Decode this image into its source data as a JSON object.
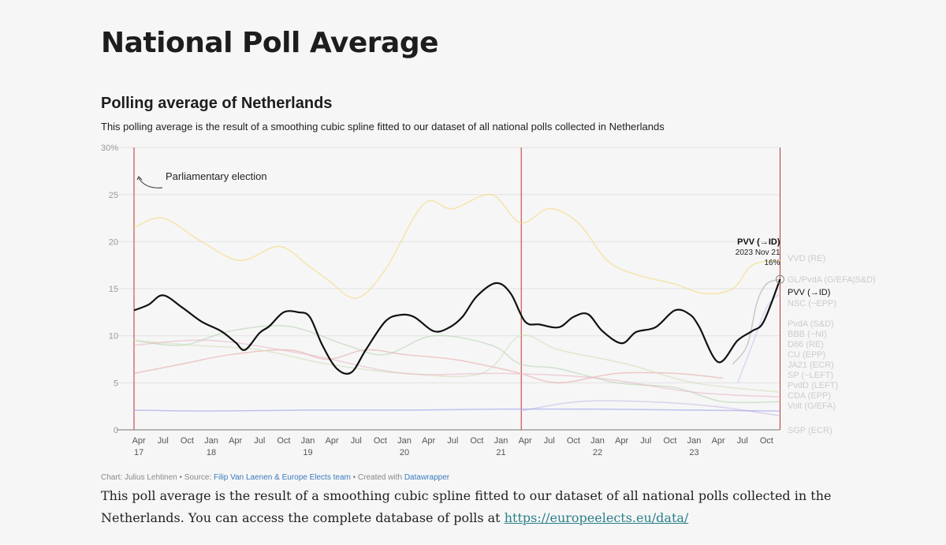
{
  "page_title": "National Poll Average",
  "chart_data": {
    "type": "line",
    "title": "Polling average of Netherlands",
    "subtitle": "This polling average is the result of a smoothing cubic spline fitted to our dataset of all national polls collected in Netherlands",
    "ylim": [
      0,
      30
    ],
    "yticks": [
      {
        "v": 0,
        "label": "0"
      },
      {
        "v": 5,
        "label": "5"
      },
      {
        "v": 10,
        "label": "10"
      },
      {
        "v": 15,
        "label": "15"
      },
      {
        "v": 20,
        "label": "20"
      },
      {
        "v": 25,
        "label": "25"
      },
      {
        "v": 30,
        "label": "30%"
      }
    ],
    "xticks": [
      {
        "t": 2017.25,
        "m": "Apr",
        "y": "17"
      },
      {
        "t": 2017.5,
        "m": "Jul",
        "y": ""
      },
      {
        "t": 2017.75,
        "m": "Oct",
        "y": ""
      },
      {
        "t": 2018.0,
        "m": "Jan",
        "y": "18"
      },
      {
        "t": 2018.25,
        "m": "Apr",
        "y": ""
      },
      {
        "t": 2018.5,
        "m": "Jul",
        "y": ""
      },
      {
        "t": 2018.75,
        "m": "Oct",
        "y": ""
      },
      {
        "t": 2019.0,
        "m": "Jan",
        "y": "19"
      },
      {
        "t": 2019.25,
        "m": "Apr",
        "y": ""
      },
      {
        "t": 2019.5,
        "m": "Jul",
        "y": ""
      },
      {
        "t": 2019.75,
        "m": "Oct",
        "y": ""
      },
      {
        "t": 2020.0,
        "m": "Jan",
        "y": "20"
      },
      {
        "t": 2020.25,
        "m": "Apr",
        "y": ""
      },
      {
        "t": 2020.5,
        "m": "Jul",
        "y": ""
      },
      {
        "t": 2020.75,
        "m": "Oct",
        "y": ""
      },
      {
        "t": 2021.0,
        "m": "Jan",
        "y": "21"
      },
      {
        "t": 2021.25,
        "m": "Apr",
        "y": ""
      },
      {
        "t": 2021.5,
        "m": "Jul",
        "y": ""
      },
      {
        "t": 2021.75,
        "m": "Oct",
        "y": ""
      },
      {
        "t": 2022.0,
        "m": "Jan",
        "y": "22"
      },
      {
        "t": 2022.25,
        "m": "Apr",
        "y": ""
      },
      {
        "t": 2022.5,
        "m": "Jul",
        "y": ""
      },
      {
        "t": 2022.75,
        "m": "Oct",
        "y": ""
      },
      {
        "t": 2023.0,
        "m": "Jan",
        "y": "23"
      },
      {
        "t": 2023.25,
        "m": "Apr",
        "y": ""
      },
      {
        "t": 2023.5,
        "m": "Jul",
        "y": ""
      },
      {
        "t": 2023.75,
        "m": "Oct",
        "y": ""
      }
    ],
    "elections": [
      2017.2,
      2021.21,
      2023.89
    ],
    "annotation": "Parliamentary election",
    "tooltip": {
      "party": "PVV (→ID)",
      "date": "2023 Nov 21",
      "value": "16%"
    },
    "series": [
      {
        "name": "VVD (RE)",
        "color": "#f5d97a",
        "highlight": false,
        "t": [
          2017.2,
          2017.5,
          2017.9,
          2018.3,
          2018.7,
          2019.0,
          2019.2,
          2019.5,
          2019.8,
          2020.2,
          2020.5,
          2020.9,
          2021.2,
          2021.5,
          2021.8,
          2022.1,
          2022.4,
          2022.8,
          2023.1,
          2023.4,
          2023.6,
          2023.89
        ],
        "v": [
          21.5,
          22.5,
          20,
          18,
          19.5,
          17.5,
          16,
          14,
          17,
          24,
          23.5,
          25,
          22,
          23.5,
          22,
          18,
          16.5,
          15.5,
          14.5,
          15,
          17.5,
          18
        ]
      },
      {
        "name": "GL/PvdA (G/EFA|S&D)",
        "color": "#aaaaaa",
        "highlight": false,
        "t": [
          2023.4,
          2023.55,
          2023.65,
          2023.75,
          2023.89
        ],
        "v": [
          7,
          9,
          13.5,
          15.5,
          16
        ]
      },
      {
        "name": "NSC (~EPP)",
        "color": "#b9c9ee",
        "highlight": false,
        "t": [
          2023.45,
          2023.6,
          2023.75,
          2023.89
        ],
        "v": [
          5,
          9,
          13,
          14.5
        ]
      },
      {
        "name": "PvdA (S&D)",
        "color": "#e8a9a9",
        "highlight": false,
        "t": [
          2017.2,
          2017.7,
          2018.2,
          2018.8,
          2019.2,
          2019.6,
          2020.0,
          2020.5,
          2021.0,
          2021.2,
          2021.6,
          2022.2,
          2022.8,
          2023.3
        ],
        "v": [
          6,
          7,
          8,
          8.5,
          7.5,
          8.5,
          8,
          7.5,
          6.5,
          6,
          5,
          6,
          6,
          5.5
        ]
      },
      {
        "name": "CDA (EPP)",
        "color": "#b8d3b3",
        "highlight": false,
        "t": [
          2017.2,
          2017.7,
          2018.2,
          2018.8,
          2019.4,
          2019.8,
          2020.3,
          2020.9,
          2021.2,
          2021.6,
          2022.2,
          2022.8,
          2023.3,
          2023.89
        ],
        "v": [
          9.5,
          9,
          10.5,
          11,
          9,
          8,
          10,
          9,
          7,
          6.5,
          5,
          4.5,
          3,
          3
        ]
      },
      {
        "name": "D66 (RE)",
        "color": "#cfe0b5",
        "highlight": false,
        "t": [
          2017.2,
          2017.8,
          2018.5,
          2019.2,
          2020.0,
          2020.8,
          2021.2,
          2021.6,
          2022.3,
          2023.0,
          2023.89
        ],
        "v": [
          9.5,
          9,
          8.5,
          7,
          6,
          6,
          10,
          8.5,
          7,
          5,
          4
        ]
      },
      {
        "name": "SP (~LEFT)",
        "color": "#e8b5c4",
        "highlight": false,
        "t": [
          2017.2,
          2018.0,
          2019.0,
          2020.0,
          2021.0,
          2022.0,
          2023.0,
          2023.89
        ],
        "v": [
          9,
          9.5,
          8,
          6,
          6,
          5.5,
          4,
          3.5
        ]
      },
      {
        "name": "Volt (G/EFA)",
        "color": "#c9b9e6",
        "highlight": false,
        "t": [
          2021.2,
          2021.8,
          2022.5,
          2023.2,
          2023.89
        ],
        "v": [
          2,
          3,
          3,
          2.5,
          1.5
        ]
      },
      {
        "name": "SGP (ECR)",
        "color": "#9aa0e8",
        "highlight": false,
        "t": [
          2017.2,
          2018.0,
          2019.0,
          2020.0,
          2021.0,
          2022.0,
          2023.0,
          2023.89
        ],
        "v": [
          2.1,
          2,
          2.1,
          2.1,
          2.2,
          2.2,
          2.1,
          2
        ]
      },
      {
        "name": "PVV (→ID)",
        "color": "#111111",
        "highlight": true,
        "t": [
          2017.2,
          2017.35,
          2017.5,
          2017.7,
          2017.9,
          2018.1,
          2018.25,
          2018.35,
          2018.5,
          2018.6,
          2018.75,
          2018.9,
          2019.02,
          2019.15,
          2019.3,
          2019.45,
          2019.6,
          2019.8,
          2019.95,
          2020.1,
          2020.3,
          2020.45,
          2020.6,
          2020.75,
          2020.95,
          2021.1,
          2021.25,
          2021.4,
          2021.6,
          2021.75,
          2021.9,
          2022.05,
          2022.25,
          2022.4,
          2022.6,
          2022.8,
          2022.95,
          2023.05,
          2023.25,
          2023.45,
          2023.6,
          2023.72,
          2023.89
        ],
        "v": [
          12.7,
          13.3,
          14.3,
          13,
          11.5,
          10.5,
          9.3,
          8.5,
          10.3,
          11,
          12.5,
          12.5,
          12,
          9,
          6.5,
          6.1,
          8.5,
          11.5,
          12.2,
          12,
          10.5,
          10.8,
          12,
          14.2,
          15.6,
          14.5,
          11.5,
          11.2,
          10.9,
          12,
          12.3,
          10.5,
          9.2,
          10.4,
          10.9,
          12.7,
          12.3,
          11,
          7.2,
          9.5,
          10.5,
          11.5,
          16
        ]
      }
    ],
    "end_labels": [
      "VVD (RE)",
      "GL/PvdA (G/EFA|S&D)",
      "PVV (→ID)",
      "NSC (~EPP)",
      "PvdA (S&D)",
      "BBB (~NI)",
      "D66 (RE)",
      "CU (EPP)",
      "JA21 (ECR)",
      "SP (~LEFT)",
      "PvdD (LEFT)",
      "CDA (EPP)",
      "Volt (G/EFA)",
      "SGP (ECR)"
    ]
  },
  "footer": {
    "chart_by": "Chart: Julius Lehtinen • Source: ",
    "source": "Filip Van Laenen & Europe Elects team",
    "created": " • Created with ",
    "tool": "Datawrapper"
  },
  "description": {
    "text": "This poll average is the result of a smoothing cubic spline fitted to our dataset of all national polls collected in the Netherlands. You can access the complete database of polls at ",
    "link": "https://europeelects.eu/data/"
  }
}
